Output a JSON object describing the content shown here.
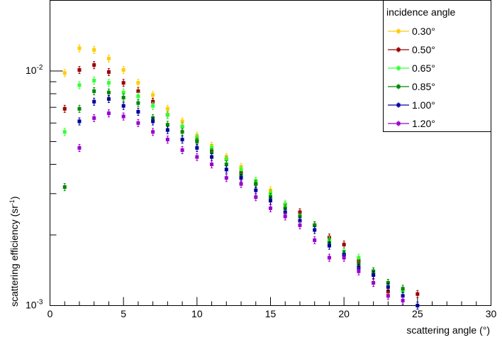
{
  "chart_data": {
    "type": "scatter",
    "xlabel": "scattering angle (°)",
    "ylabel_main": "scattering efficiency (sr",
    "ylabel_sup": "-1",
    "ylabel_close": ")",
    "xlim": [
      0,
      30
    ],
    "ylim": [
      0.001,
      0.02
    ],
    "yscale": "log",
    "grid": false,
    "legend_title": "incidence angle",
    "legend_position": "top-right",
    "x_ticks": [
      {
        "value": 0,
        "label": "0"
      },
      {
        "value": 5,
        "label": "5"
      },
      {
        "value": 10,
        "label": "10"
      },
      {
        "value": 15,
        "label": "15"
      },
      {
        "value": 20,
        "label": "20"
      },
      {
        "value": 25,
        "label": "25"
      },
      {
        "value": 30,
        "label": "30"
      }
    ],
    "y_ticks": [
      {
        "value": 0.01,
        "base": "10",
        "exp": "-2"
      },
      {
        "value": 0.001,
        "base": "10",
        "exp": "-3"
      }
    ],
    "x": [
      1,
      2,
      3,
      4,
      5,
      6,
      7,
      8,
      9,
      10,
      11,
      12,
      13,
      14,
      15,
      16,
      17,
      18,
      19,
      20,
      21,
      22,
      23,
      24,
      25
    ],
    "series": [
      {
        "name": "0.30°",
        "color": "#ffcc00",
        "values": [
          0.0098,
          0.0125,
          0.0123,
          0.0113,
          0.0101,
          0.0089,
          0.0079,
          0.0069,
          0.0061,
          0.0053,
          0.0048,
          0.0043,
          0.0039,
          0.0034,
          0.0031,
          0.0027,
          0.0024,
          0.0022,
          0.0019,
          0.0017,
          0.00155,
          0.00125,
          0.00113,
          null,
          null
        ]
      },
      {
        "name": "0.50°",
        "color": "#990000",
        "values": [
          0.0069,
          0.0101,
          0.0106,
          0.0099,
          0.0089,
          0.0082,
          0.0074,
          0.0065,
          0.0058,
          0.0051,
          0.0046,
          0.0042,
          0.0037,
          0.0033,
          0.003,
          0.0027,
          0.0025,
          0.0022,
          0.00195,
          0.00182,
          0.00155,
          0.00135,
          0.00115,
          null,
          0.00112
        ]
      },
      {
        "name": "0.65°",
        "color": "#33ff33",
        "values": [
          0.0055,
          0.0087,
          0.0091,
          0.0089,
          0.0081,
          0.0078,
          0.0071,
          0.0065,
          0.0058,
          0.0052,
          0.0047,
          0.0042,
          0.0038,
          0.0034,
          0.003,
          0.0027,
          0.0024,
          0.0022,
          0.0019,
          0.0017,
          0.0016,
          0.0014,
          0.00125,
          0.00115,
          null
        ]
      },
      {
        "name": "0.85°",
        "color": "#008800",
        "values": [
          0.0032,
          0.0069,
          0.0082,
          0.0081,
          0.0077,
          0.0073,
          0.0063,
          0.0059,
          0.0055,
          0.005,
          0.0045,
          0.004,
          0.0036,
          0.0033,
          0.0029,
          0.0026,
          0.0024,
          0.0022,
          0.00185,
          0.00165,
          0.0015,
          0.0014,
          0.00125,
          0.00118,
          null
        ]
      },
      {
        "name": "1.00°",
        "color": "#000099",
        "values": [
          null,
          0.0061,
          0.0074,
          0.0076,
          0.0071,
          0.0067,
          0.0061,
          0.0056,
          0.0051,
          0.0047,
          0.0043,
          0.0038,
          0.0035,
          0.0031,
          0.0028,
          0.0025,
          0.0023,
          0.0021,
          0.0018,
          0.00165,
          0.00145,
          0.00135,
          0.0012,
          0.0011,
          0.001
        ]
      },
      {
        "name": "1.20°",
        "color": "#9900cc",
        "values": [
          null,
          0.0047,
          0.0063,
          0.0066,
          0.0064,
          0.006,
          0.0055,
          0.0051,
          0.0046,
          0.0043,
          0.004,
          0.0035,
          0.0033,
          0.0029,
          0.0026,
          0.0024,
          0.0022,
          0.0019,
          0.0016,
          0.0016,
          0.0014,
          0.00125,
          0.0011,
          0.00105,
          null
        ]
      }
    ]
  }
}
